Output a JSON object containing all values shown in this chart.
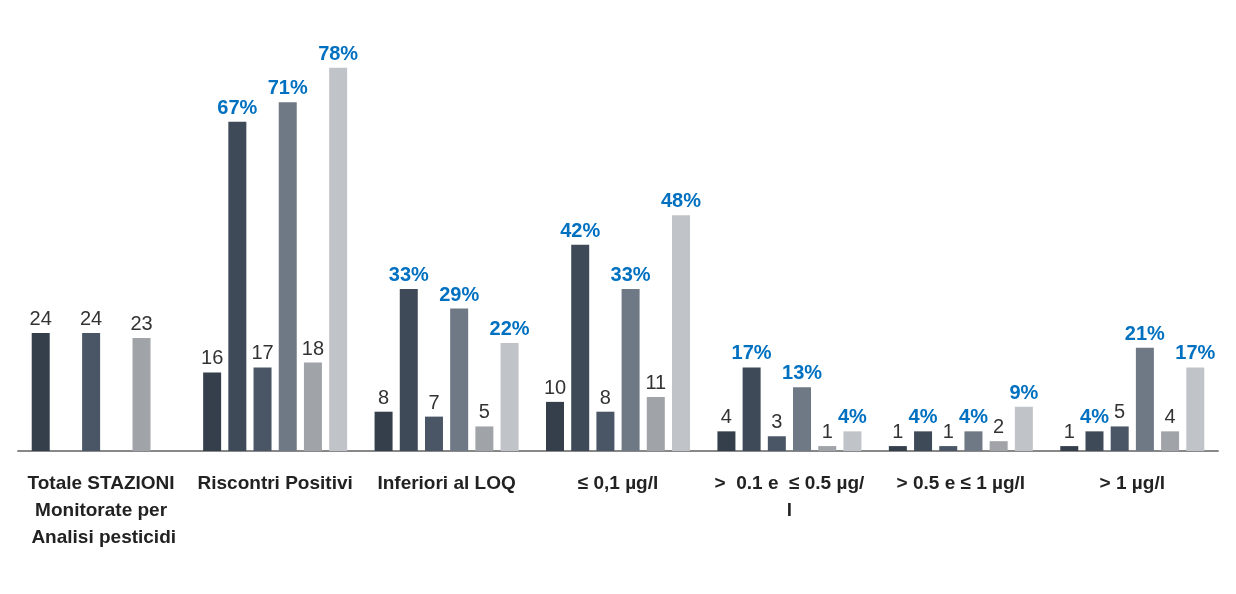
{
  "chart_data": {
    "type": "bar",
    "categories": [
      "Totale STAZIONI Monitorate per Analisi pesticidi",
      "Riscontri Positivi",
      "Inferiori al LOQ",
      "≤ 0,1 µg/l",
      ">  0.1 e  ≤ 0.5 µg/l",
      "> 0.5 e ≤ 1 µg/l",
      "> 1 µg/l"
    ],
    "series": [
      {
        "color": "#353f4c",
        "values": [
          24,
          16,
          8,
          10,
          4,
          1,
          1
        ],
        "value_labels": [
          "24",
          "16",
          "8",
          "10",
          "4",
          "1",
          "1"
        ]
      },
      {
        "color": "#3f4a59",
        "values": [
          null,
          67,
          33,
          42,
          17,
          4,
          4
        ],
        "value_labels": [
          null,
          "67%",
          "33%",
          "42%",
          "17%",
          "4%",
          "4%"
        ]
      },
      {
        "color": "#4a5666",
        "values": [
          24,
          17,
          7,
          8,
          3,
          1,
          5
        ],
        "value_labels": [
          "24",
          "17",
          "7",
          "8",
          "3",
          "1",
          "5"
        ]
      },
      {
        "color": "#6f7885",
        "values": [
          null,
          71,
          29,
          33,
          13,
          4,
          21
        ],
        "value_labels": [
          null,
          "71%",
          "29%",
          "33%",
          "13%",
          "4%",
          "21%"
        ]
      },
      {
        "color": "#a0a3a8",
        "values": [
          23,
          18,
          5,
          11,
          1,
          2,
          4
        ],
        "value_labels": [
          "23",
          "18",
          "5",
          "11",
          "1",
          "2",
          "4"
        ]
      },
      {
        "color": "#c0c3c7",
        "values": [
          null,
          78,
          22,
          48,
          4,
          9,
          17
        ],
        "value_labels": [
          null,
          "78%",
          "22%",
          "48%",
          "4%",
          "9%",
          "17%"
        ]
      }
    ]
  }
}
